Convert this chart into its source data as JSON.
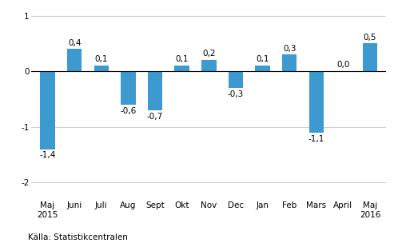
{
  "categories": [
    "Maj\n2015",
    "Juni",
    "Juli",
    "Aug",
    "Sept",
    "Okt",
    "Nov",
    "Dec",
    "Jan",
    "Feb",
    "Mars",
    "April",
    "Maj\n2016"
  ],
  "values": [
    -1.4,
    0.4,
    0.1,
    -0.6,
    -0.7,
    0.1,
    0.2,
    -0.3,
    0.1,
    0.3,
    -1.1,
    0.0,
    0.5
  ],
  "bar_color": "#3d9ad1",
  "ylim": [
    -2.3,
    1.15
  ],
  "yticks": [
    -2,
    -1,
    0,
    1
  ],
  "footer": "Källa: Statistikcentralen",
  "background_color": "#ffffff",
  "grid_color": "#d0d0d0",
  "label_fontsize": 7.5,
  "tick_fontsize": 7.5,
  "footer_fontsize": 7.5,
  "bar_width": 0.55
}
